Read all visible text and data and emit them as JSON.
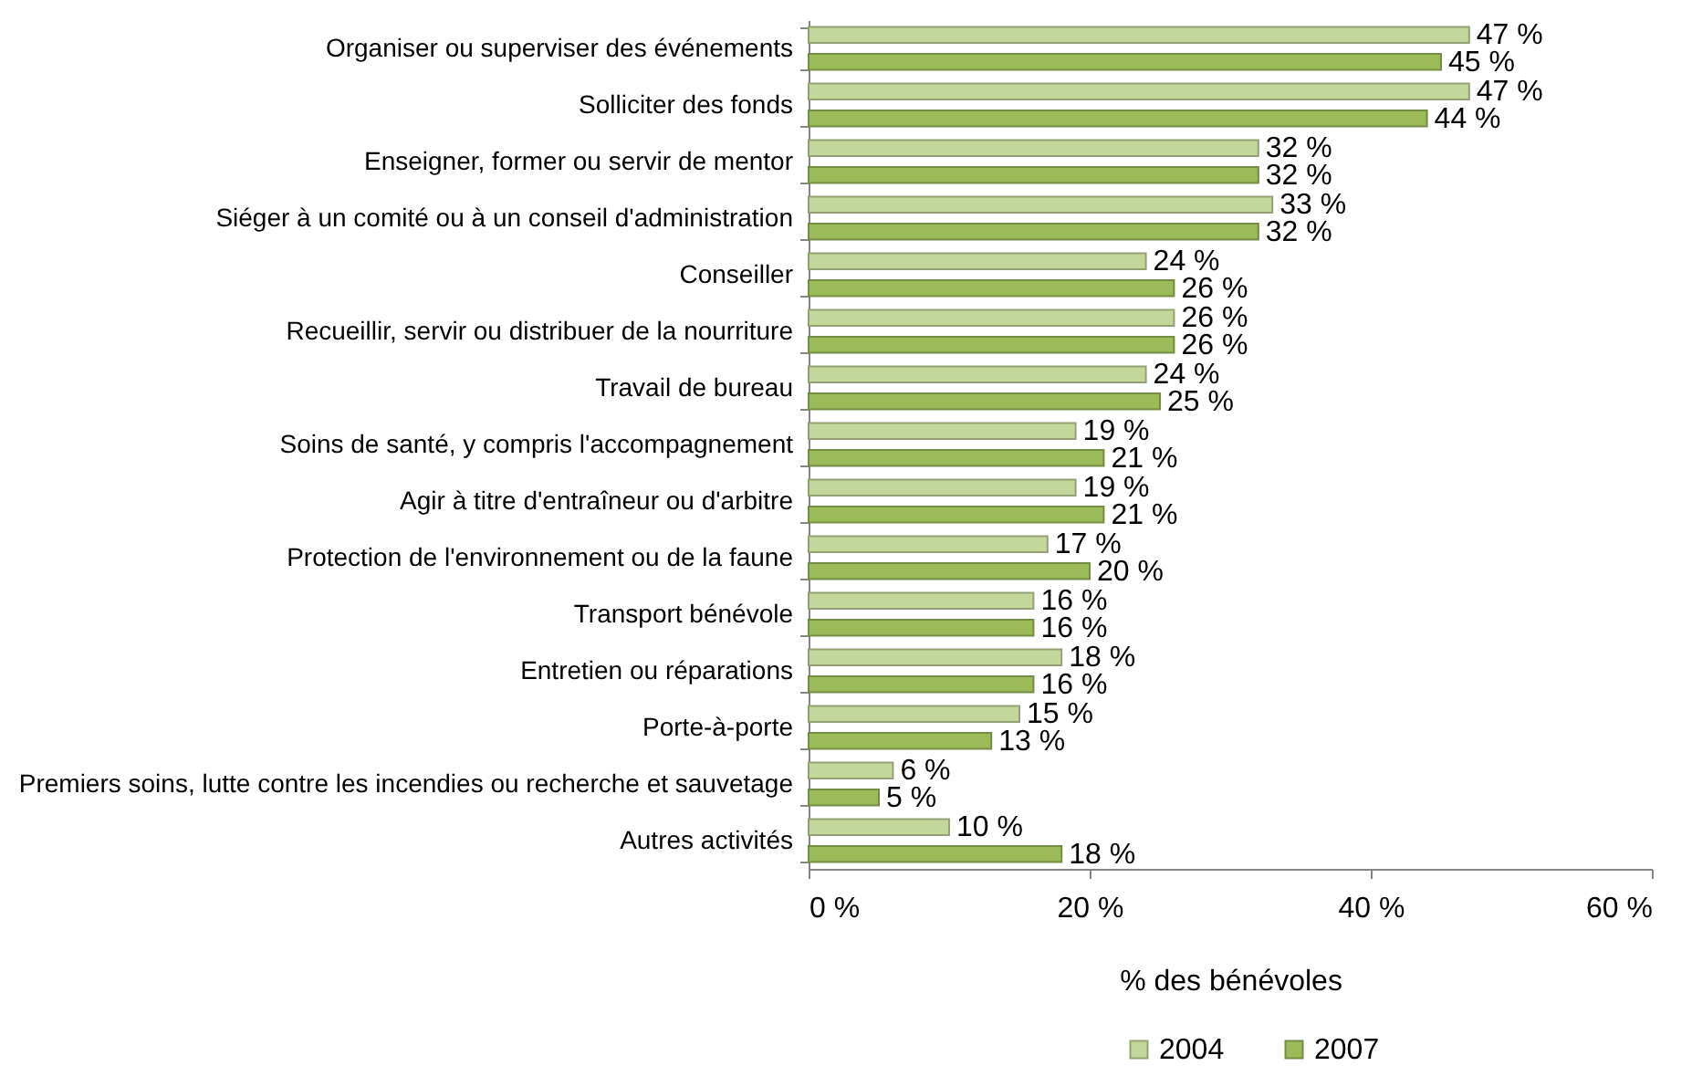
{
  "chart_data": {
    "type": "bar",
    "orientation": "horizontal",
    "categories": [
      "Organiser ou superviser des événements",
      "Solliciter des fonds",
      "Enseigner, former ou servir de mentor",
      "Siéger à un comité ou à un conseil d'administration",
      "Conseiller",
      "Recueillir, servir ou distribuer de la nourriture",
      "Travail de bureau",
      "Soins de santé, y compris l'accompagnement",
      "Agir à titre d'entraîneur ou d'arbitre",
      "Protection de l'environnement ou de la faune",
      "Transport bénévole",
      "Entretien ou réparations",
      "Porte-à-porte",
      "Premiers soins, lutte contre les incendies ou recherche et sauvetage",
      "Autres activités"
    ],
    "series": [
      {
        "name": "2004",
        "color": "#c4d79b",
        "values": [
          47,
          47,
          32,
          33,
          24,
          26,
          24,
          19,
          19,
          17,
          16,
          18,
          15,
          6,
          10
        ],
        "value_labels": [
          "47 %",
          "47 %",
          "32 %",
          "33 %",
          "24 %",
          "26 %",
          "24 %",
          "19 %",
          "19 %",
          "17 %",
          "16 %",
          "18 %",
          "15 %",
          "6 %",
          "10 %"
        ]
      },
      {
        "name": "2007",
        "color": "#9bbb59",
        "values": [
          45,
          44,
          32,
          32,
          26,
          26,
          25,
          21,
          21,
          20,
          16,
          16,
          13,
          5,
          18
        ],
        "value_labels": [
          "45 %",
          "44 %",
          "32 %",
          "32 %",
          "26 %",
          "26 %",
          "25 %",
          "21 %",
          "21 %",
          "20 %",
          "16 %",
          "16 %",
          "13 %",
          "5 %",
          "18 %"
        ]
      }
    ],
    "xlim": [
      0,
      60
    ],
    "xticks": [
      {
        "value": 0,
        "label": "0 %"
      },
      {
        "value": 20,
        "label": "20 %"
      },
      {
        "value": 40,
        "label": "40 %"
      },
      {
        "value": 60,
        "label": "60 %"
      }
    ],
    "xlabel": "% des bénévoles",
    "legend": "bottom"
  }
}
